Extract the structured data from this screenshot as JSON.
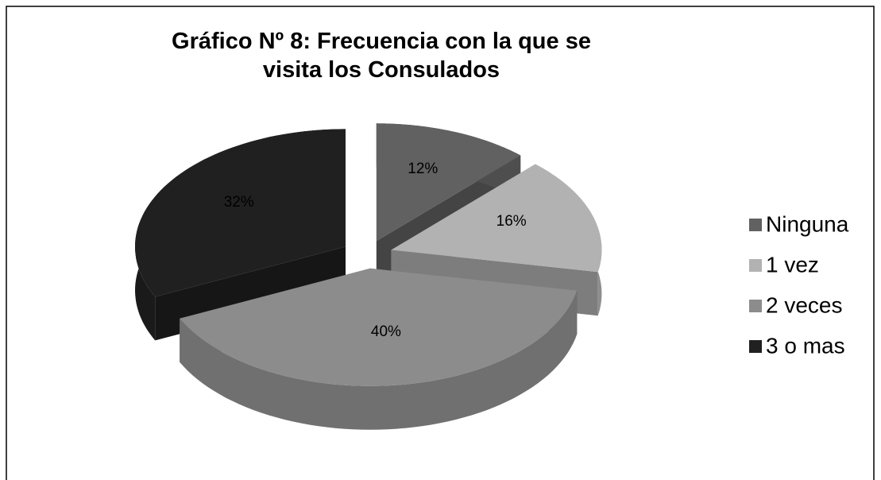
{
  "chart_data": {
    "type": "pie",
    "title": "Gráfico Nº 8: Frecuencia con la que se visita los Consulados",
    "categories": [
      "Ninguna",
      "1 vez",
      "2 veces",
      "3 o mas"
    ],
    "values": [
      12,
      16,
      40,
      32
    ],
    "value_labels": [
      "12%",
      "16%",
      "40%",
      "32%"
    ],
    "colors": [
      "#616161",
      "#b2b2b2",
      "#8c8c8c",
      "#202020"
    ],
    "legend": "right"
  }
}
